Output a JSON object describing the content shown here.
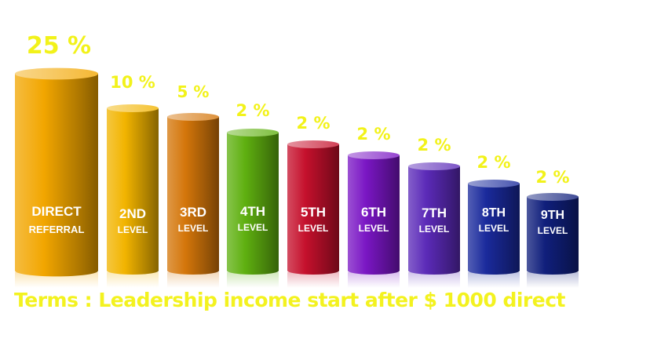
{
  "chart_data": {
    "type": "bar",
    "categories": [
      {
        "line1": "DIRECT",
        "line2": "REFERRAL"
      },
      {
        "line1": "2ND",
        "line2": "LEVEL"
      },
      {
        "line1": "3RD",
        "line2": "LEVEL"
      },
      {
        "line1": "4TH",
        "line2": "LEVEL"
      },
      {
        "line1": "5TH",
        "line2": "LEVEL"
      },
      {
        "line1": "6TH",
        "line2": "LEVEL"
      },
      {
        "line1": "7TH",
        "line2": "LEVEL"
      },
      {
        "line1": "8TH",
        "line2": "LEVEL"
      },
      {
        "line1": "9TH",
        "line2": "LEVEL"
      }
    ],
    "values": [
      25,
      10,
      5,
      2,
      2,
      2,
      2,
      2,
      2
    ],
    "value_labels": [
      "25 %",
      "10 %",
      "5 %",
      "2 %",
      "2 %",
      "2 %",
      "2 %",
      "2 %",
      "2 %"
    ],
    "colors": [
      "#f2a600",
      "#f2b400",
      "#d4760a",
      "#5fb010",
      "#c5102c",
      "#7a16c4",
      "#5b2ab8",
      "#1a2a9c",
      "#101f7c"
    ],
    "label_color": "#f2f21a",
    "grid": false,
    "legend": "none"
  },
  "terms": {
    "text": "Terms : Leadership income start after $ 1000 direct"
  }
}
